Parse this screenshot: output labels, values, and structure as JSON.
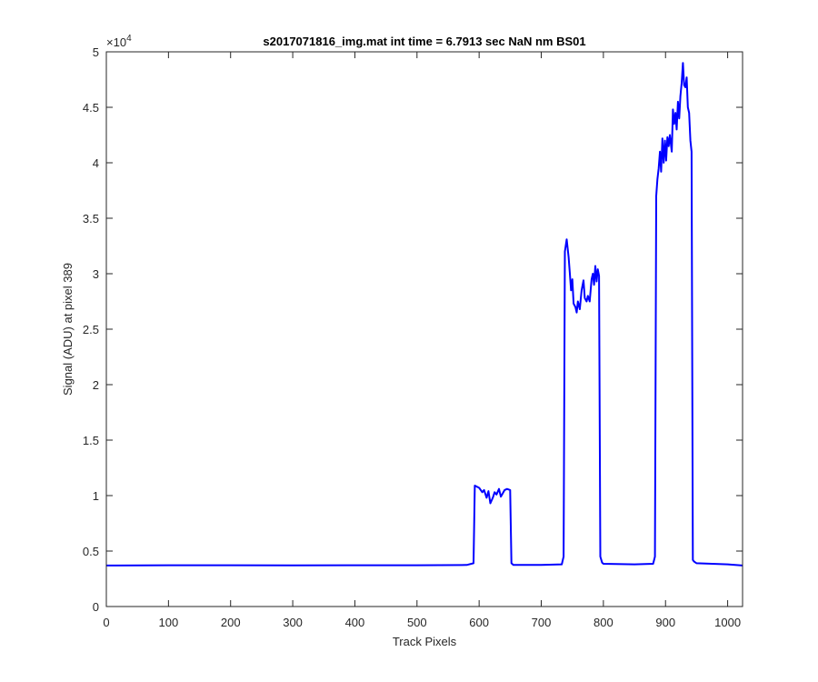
{
  "chart_data": {
    "type": "line",
    "title": "s2017071816_img.mat int time = 6.7913 sec  NaN nm BS01",
    "xlabel": "Track Pixels",
    "ylabel": "Signal (ADU) at pixel 389",
    "xlim": [
      0,
      1024
    ],
    "ylim": [
      0,
      50000
    ],
    "xticks": [
      0,
      100,
      200,
      300,
      400,
      500,
      600,
      700,
      800,
      900,
      1000
    ],
    "xtick_labels": [
      "0",
      "100",
      "200",
      "300",
      "400",
      "500",
      "600",
      "700",
      "800",
      "900",
      "1000"
    ],
    "yticks": [
      0,
      5000,
      10000,
      15000,
      20000,
      25000,
      30000,
      35000,
      40000,
      45000,
      50000
    ],
    "ytick_labels": [
      "0",
      "0.5",
      "1",
      "1.5",
      "2",
      "2.5",
      "3",
      "3.5",
      "4",
      "4.5",
      "5"
    ],
    "y_exponent_base": "×10",
    "y_exponent_power": "4",
    "grid": false,
    "line_color": "#0000ff",
    "series": [
      {
        "x": [
          0,
          100,
          200,
          300,
          400,
          500,
          580,
          591,
          593,
          600,
          605,
          608,
          612,
          615,
          618,
          622,
          625,
          628,
          632,
          635,
          638,
          641,
          645,
          650,
          652,
          655,
          700,
          733,
          736,
          738,
          741,
          744,
          746,
          748,
          750,
          752,
          755,
          757,
          759,
          762,
          765,
          768,
          770,
          773,
          775,
          778,
          781,
          783,
          785,
          787,
          789,
          791,
          793,
          795,
          798,
          800,
          850,
          880,
          883,
          885,
          887,
          889,
          891,
          893,
          895,
          897,
          899,
          901,
          903,
          905,
          907,
          910,
          912,
          914,
          916,
          918,
          920,
          922,
          924,
          926,
          928,
          930,
          932,
          934,
          936,
          938,
          940,
          942,
          944,
          946,
          950,
          1000,
          1024
        ],
        "y": [
          3700,
          3720,
          3720,
          3710,
          3720,
          3720,
          3750,
          3900,
          10900,
          10700,
          10300,
          10500,
          9800,
          10400,
          9300,
          9800,
          10300,
          10100,
          10600,
          9900,
          10200,
          10500,
          10600,
          10500,
          3900,
          3750,
          3750,
          3800,
          4500,
          32000,
          33100,
          31500,
          30000,
          28500,
          29500,
          27300,
          27000,
          26500,
          27500,
          26800,
          28500,
          29400,
          27800,
          27500,
          28000,
          27500,
          29500,
          30000,
          29000,
          30700,
          29300,
          30400,
          29800,
          4500,
          3950,
          3850,
          3800,
          3850,
          4500,
          37000,
          38500,
          39500,
          41000,
          39200,
          42200,
          40000,
          42000,
          40200,
          42300,
          41500,
          42500,
          41000,
          44800,
          43500,
          44500,
          43000,
          45500,
          44000,
          46000,
          47200,
          49000,
          47000,
          46800,
          47700,
          45000,
          44500,
          42000,
          41000,
          4200,
          4050,
          3900,
          3800,
          3700
        ]
      }
    ]
  }
}
